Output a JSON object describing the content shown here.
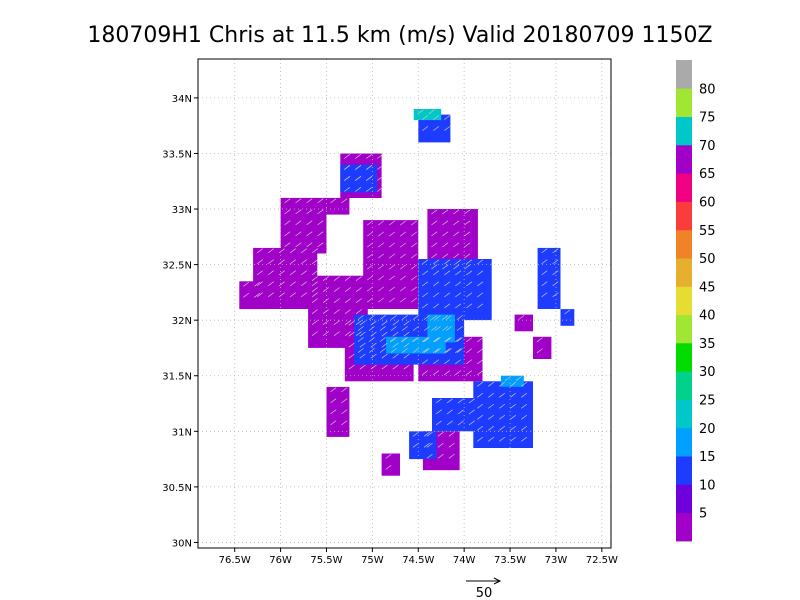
{
  "chart_data": {
    "type": "heatmap",
    "title": "180709H1 Chris at 11.5 km (m/s) Valid 20180709 1150Z",
    "xlim": [
      -76.9,
      -72.4
    ],
    "ylim": [
      29.95,
      34.35
    ],
    "x_ticks": [
      {
        "value": -76.5,
        "label": "76.5W"
      },
      {
        "value": -76,
        "label": "76W"
      },
      {
        "value": -75.5,
        "label": "75.5W"
      },
      {
        "value": -75,
        "label": "75W"
      },
      {
        "value": -74.5,
        "label": "74.5W"
      },
      {
        "value": -74,
        "label": "74W"
      },
      {
        "value": -73.5,
        "label": "73.5W"
      },
      {
        "value": -73,
        "label": "73W"
      },
      {
        "value": -72.5,
        "label": "72.5W"
      }
    ],
    "y_ticks": [
      {
        "value": 30,
        "label": "30N"
      },
      {
        "value": 30.5,
        "label": "30.5N"
      },
      {
        "value": 31,
        "label": "31N"
      },
      {
        "value": 31.5,
        "label": "31.5N"
      },
      {
        "value": 32,
        "label": "32N"
      },
      {
        "value": 32.5,
        "label": "32.5N"
      },
      {
        "value": 33,
        "label": "33N"
      },
      {
        "value": 33.5,
        "label": "33.5N"
      },
      {
        "value": 34,
        "label": "34N"
      }
    ],
    "grid": true,
    "colorbar": {
      "labels": [
        "5",
        "10",
        "15",
        "20",
        "25",
        "30",
        "35",
        "40",
        "45",
        "50",
        "55",
        "60",
        "65",
        "70",
        "75",
        "80"
      ],
      "colors": [
        "#a000c8",
        "#6e00dc",
        "#1e3cff",
        "#00a0ff",
        "#00c8c8",
        "#00d28c",
        "#00dc00",
        "#a0e632",
        "#e6dc32",
        "#e6af2d",
        "#f08228",
        "#fa3c3c",
        "#f00082",
        "#a000c8",
        "#00c8c8",
        "#a0e632",
        "#aaaaaa"
      ]
    },
    "speed_regions": [
      {
        "bin": 0,
        "lon": [
          -76.3,
          -75.6
        ],
        "lat": [
          32.1,
          32.65
        ]
      },
      {
        "bin": 0,
        "lon": [
          -76.0,
          -75.5
        ],
        "lat": [
          32.6,
          33.1
        ]
      },
      {
        "bin": 0,
        "lon": [
          -75.7,
          -75.05
        ],
        "lat": [
          31.75,
          32.4
        ]
      },
      {
        "bin": 0,
        "lon": [
          -75.3,
          -74.55
        ],
        "lat": [
          31.45,
          32.0
        ]
      },
      {
        "bin": 0,
        "lon": [
          -74.5,
          -73.8
        ],
        "lat": [
          31.45,
          31.85
        ]
      },
      {
        "bin": 0,
        "lon": [
          -75.1,
          -74.5
        ],
        "lat": [
          32.1,
          32.9
        ]
      },
      {
        "bin": 0,
        "lon": [
          -74.4,
          -73.85
        ],
        "lat": [
          32.4,
          33.0
        ]
      },
      {
        "bin": 0,
        "lon": [
          -75.5,
          -75.25
        ],
        "lat": [
          30.95,
          31.4
        ]
      },
      {
        "bin": 0,
        "lon": [
          -75.35,
          -74.9
        ],
        "lat": [
          33.1,
          33.5
        ]
      },
      {
        "bin": 0,
        "lon": [
          -74.45,
          -74.05
        ],
        "lat": [
          30.65,
          31.0
        ]
      },
      {
        "bin": 0,
        "lon": [
          -73.45,
          -73.25
        ],
        "lat": [
          31.9,
          32.05
        ]
      },
      {
        "bin": 0,
        "lon": [
          -73.25,
          -73.05
        ],
        "lat": [
          31.65,
          31.85
        ]
      },
      {
        "bin": 0,
        "lon": [
          -74.9,
          -74.7
        ],
        "lat": [
          30.6,
          30.8
        ]
      },
      {
        "bin": 0,
        "lon": [
          -75.5,
          -75.25
        ],
        "lat": [
          32.95,
          33.1
        ]
      },
      {
        "bin": 0,
        "lon": [
          -76.45,
          -76.15
        ],
        "lat": [
          32.1,
          32.35
        ]
      },
      {
        "bin": 2,
        "lon": [
          -75.2,
          -74.0
        ],
        "lat": [
          31.6,
          32.05
        ]
      },
      {
        "bin": 2,
        "lon": [
          -74.5,
          -73.7
        ],
        "lat": [
          32.0,
          32.55
        ]
      },
      {
        "bin": 2,
        "lon": [
          -73.9,
          -73.25
        ],
        "lat": [
          30.85,
          31.45
        ]
      },
      {
        "bin": 2,
        "lon": [
          -74.35,
          -73.8
        ],
        "lat": [
          31.0,
          31.3
        ]
      },
      {
        "bin": 2,
        "lon": [
          -74.6,
          -74.3
        ],
        "lat": [
          30.75,
          31.0
        ]
      },
      {
        "bin": 2,
        "lon": [
          -74.5,
          -74.15
        ],
        "lat": [
          33.6,
          33.85
        ]
      },
      {
        "bin": 2,
        "lon": [
          -73.2,
          -72.95
        ],
        "lat": [
          32.1,
          32.65
        ]
      },
      {
        "bin": 2,
        "lon": [
          -72.95,
          -72.8
        ],
        "lat": [
          31.95,
          32.1
        ]
      },
      {
        "bin": 2,
        "lon": [
          -75.35,
          -74.95
        ],
        "lat": [
          33.15,
          33.4
        ]
      },
      {
        "bin": 3,
        "lon": [
          -74.85,
          -74.2
        ],
        "lat": [
          31.7,
          31.85
        ]
      },
      {
        "bin": 3,
        "lon": [
          -74.4,
          -74.1
        ],
        "lat": [
          31.8,
          32.05
        ]
      },
      {
        "bin": 3,
        "lon": [
          -73.6,
          -73.35
        ],
        "lat": [
          31.4,
          31.5
        ]
      },
      {
        "bin": 4,
        "lon": [
          -74.55,
          -74.25
        ],
        "lat": [
          33.8,
          33.9
        ]
      }
    ]
  },
  "reference_vector": {
    "label": "50"
  }
}
